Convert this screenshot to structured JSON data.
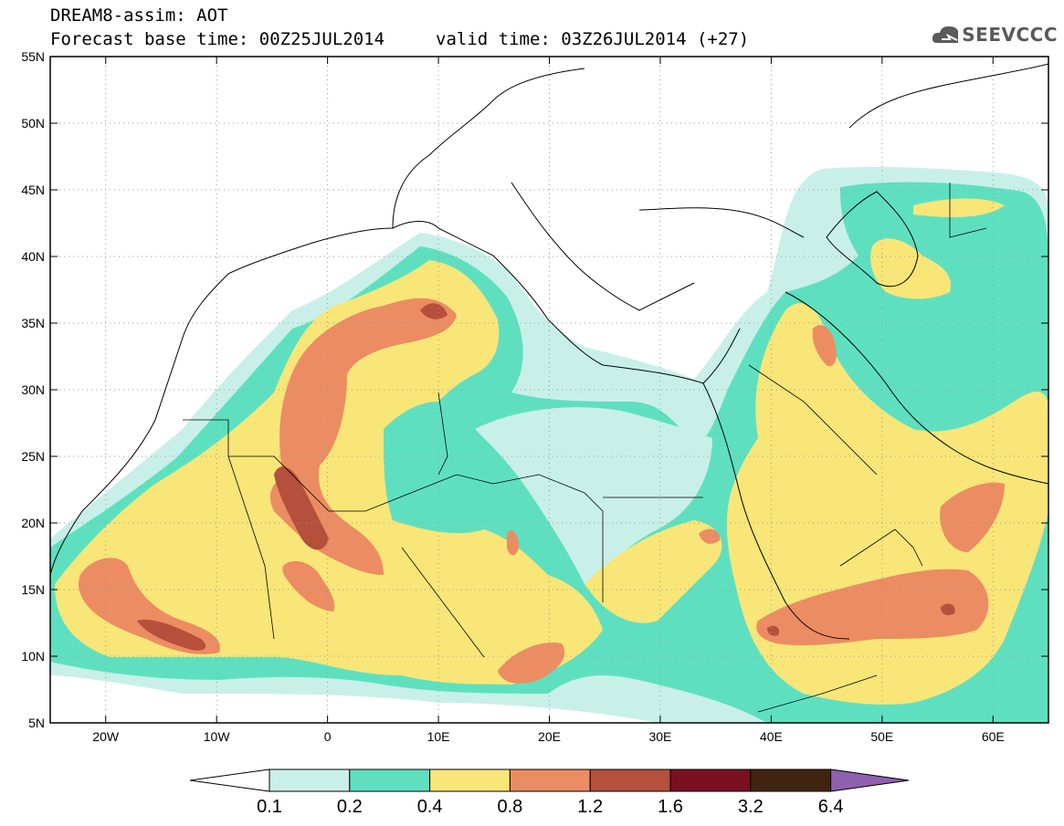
{
  "header": {
    "title_line1": "DREAM8-assim: AOT",
    "title_line2_left": "Forecast base time: 00Z25JUL2014",
    "title_line2_right": "valid time: 03Z26JUL2014 (+27)",
    "logo_text": "SEEVCCC"
  },
  "map": {
    "lat_labels": [
      "55N",
      "50N",
      "45N",
      "40N",
      "35N",
      "30N",
      "25N",
      "20N",
      "15N",
      "10N",
      "5N"
    ],
    "lon_labels": [
      "20W",
      "10W",
      "0",
      "10E",
      "20E",
      "30E",
      "40E",
      "50E",
      "60E"
    ],
    "lat_range": [
      5,
      55
    ],
    "lon_range": [
      -25,
      65
    ],
    "grid": "dotted"
  },
  "legend": {
    "levels": [
      "0.1",
      "0.2",
      "0.4",
      "0.8",
      "1.2",
      "1.6",
      "3.2",
      "6.4"
    ],
    "colors": [
      "#ffffff",
      "#c8f0e8",
      "#5ee0c0",
      "#f8e678",
      "#ec8c62",
      "#b4503c",
      "#7a1020",
      "#402410",
      "#9060b0"
    ]
  },
  "colors": {
    "c1": "#c8f0e8",
    "c2": "#5ee0c0",
    "c3": "#f8e678",
    "c4": "#ec8c62",
    "c5": "#b4503c"
  }
}
